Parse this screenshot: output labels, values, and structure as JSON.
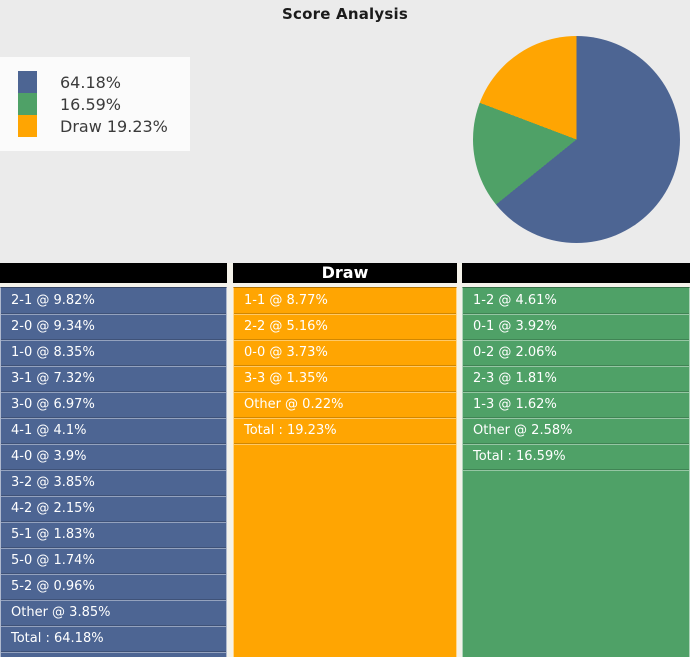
{
  "title": "Score Analysis",
  "colors": {
    "home_win": "#4d6593",
    "away_win": "#4fa167",
    "draw": "#ffa502",
    "background": "#ebebeb",
    "legend_background": "#fbfbfb",
    "header_background": "#000000",
    "header_text": "#ffffff",
    "row_text": "#ffffff"
  },
  "legend": {
    "items": [
      {
        "label": "64.18%",
        "color": "#4d6593"
      },
      {
        "label": "16.59%",
        "color": "#4fa167"
      },
      {
        "label": "Draw 19.23%",
        "color": "#ffa502"
      }
    ]
  },
  "chart_data": {
    "type": "pie",
    "title": "Score Analysis",
    "slices": [
      {
        "label": "",
        "value": 64.18,
        "color": "#4d6593"
      },
      {
        "label": "",
        "value": 16.59,
        "color": "#4fa167"
      },
      {
        "label": "Draw",
        "value": 19.23,
        "color": "#ffa502"
      }
    ],
    "start_angle": "top",
    "direction": "clockwise",
    "legend_position": "upper-left"
  },
  "columns": [
    {
      "name": "home-win",
      "header": "",
      "color": "#4d6593",
      "rows": [
        "2-1 @ 9.82%",
        "2-0 @ 9.34%",
        "1-0 @ 8.35%",
        "3-1 @ 7.32%",
        "3-0 @ 6.97%",
        "4-1 @ 4.1%",
        "4-0 @ 3.9%",
        "3-2 @ 3.85%",
        "4-2 @ 2.15%",
        "5-1 @ 1.83%",
        "5-0 @ 1.74%",
        "5-2 @ 0.96%",
        "Other @ 3.85%",
        "Total : 64.18%"
      ]
    },
    {
      "name": "draw",
      "header": "Draw",
      "color": "#ffa502",
      "rows": [
        "1-1 @ 8.77%",
        "2-2 @ 5.16%",
        "0-0 @ 3.73%",
        "3-3 @ 1.35%",
        "Other @ 0.22%",
        "Total : 19.23%"
      ]
    },
    {
      "name": "away-win",
      "header": "",
      "color": "#4fa167",
      "rows": [
        "1-2 @ 4.61%",
        "0-1 @ 3.92%",
        "0-2 @ 2.06%",
        "2-3 @ 1.81%",
        "1-3 @ 1.62%",
        "Other @ 2.58%",
        "Total : 16.59%"
      ]
    }
  ]
}
